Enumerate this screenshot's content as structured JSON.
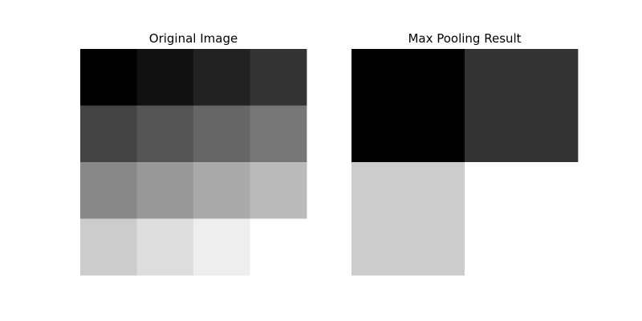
{
  "chart_data": [
    {
      "type": "heatmap",
      "title": "Original Image",
      "colormap": "gray",
      "vmin": 0,
      "vmax": 15,
      "axes": "off",
      "values": [
        [
          0,
          1,
          2,
          3
        ],
        [
          4,
          5,
          6,
          7
        ],
        [
          8,
          9,
          10,
          11
        ],
        [
          12,
          13,
          14,
          15
        ]
      ]
    },
    {
      "type": "heatmap",
      "title": "Max Pooling Result",
      "colormap": "gray",
      "vmin": 5,
      "vmax": 15,
      "axes": "off",
      "values": [
        [
          5,
          7
        ],
        [
          13,
          15
        ]
      ]
    }
  ]
}
